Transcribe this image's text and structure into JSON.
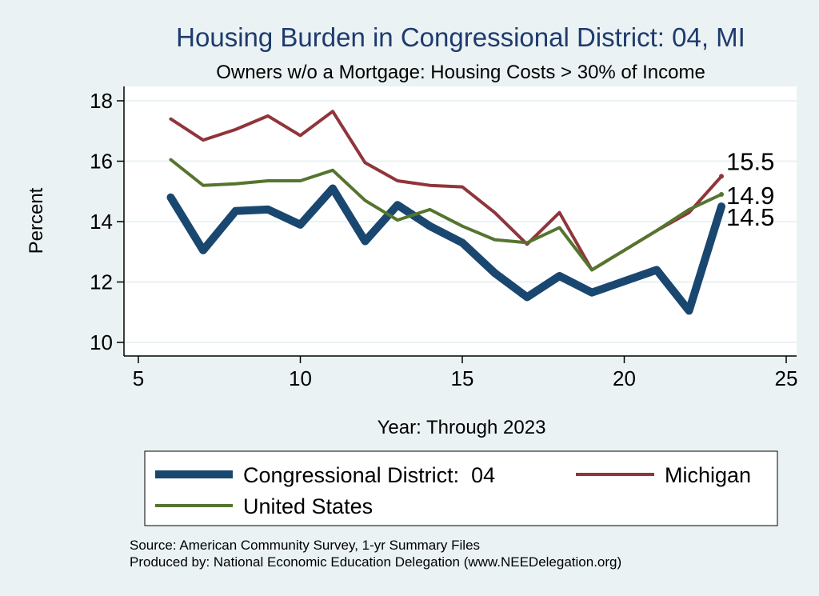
{
  "chart_data": {
    "type": "line",
    "title": "Housing Burden in Congressional District:  04, MI",
    "subtitle": "Owners w/o a Mortgage: Housing Costs > 30% of Income",
    "xlabel": "Year: Through 2023",
    "ylabel": "Percent",
    "xlim": [
      5,
      25
    ],
    "ylim": [
      10,
      18
    ],
    "xticks": [
      5,
      10,
      15,
      20,
      25
    ],
    "yticks": [
      10,
      12,
      14,
      16,
      18
    ],
    "grid": true,
    "legend_position": "bottom",
    "series": [
      {
        "name": "Congressional District:  04",
        "color": "#1a476f",
        "x": [
          6,
          7,
          8,
          9,
          10,
          11,
          12,
          13,
          14,
          15,
          16,
          17,
          18,
          19,
          21,
          22,
          23
        ],
        "y": [
          14.8,
          13.05,
          14.35,
          14.4,
          13.9,
          15.1,
          13.35,
          14.55,
          13.85,
          13.3,
          12.3,
          11.5,
          12.2,
          11.65,
          12.4,
          11.05,
          14.5
        ],
        "end_label": "14.5"
      },
      {
        "name": "Michigan",
        "color": "#90353b",
        "x": [
          6,
          7,
          8,
          9,
          10,
          11,
          12,
          13,
          14,
          15,
          16,
          17,
          18,
          19,
          20,
          21,
          22,
          23
        ],
        "y": [
          17.4,
          16.7,
          17.05,
          17.5,
          16.85,
          17.65,
          15.95,
          15.35,
          15.2,
          15.15,
          14.3,
          13.25,
          14.3,
          12.4,
          13.05,
          13.7,
          14.3,
          15.5
        ],
        "end_label": "15.5"
      },
      {
        "name": "United States",
        "color": "#55752f",
        "x": [
          6,
          7,
          8,
          9,
          10,
          11,
          12,
          13,
          14,
          15,
          16,
          17,
          18,
          19,
          20,
          21,
          22,
          23
        ],
        "y": [
          16.05,
          15.2,
          15.25,
          15.35,
          15.35,
          15.7,
          14.7,
          14.05,
          14.4,
          13.85,
          13.4,
          13.3,
          13.8,
          12.4,
          13.05,
          13.7,
          14.4,
          14.9
        ],
        "end_label": "14.9"
      }
    ]
  },
  "footer": {
    "source": "Source: American Community Survey, 1-yr Summary Files",
    "produced_by": "Produced by: National Economic Education Delegation (www.NEEDelegation.org)"
  }
}
